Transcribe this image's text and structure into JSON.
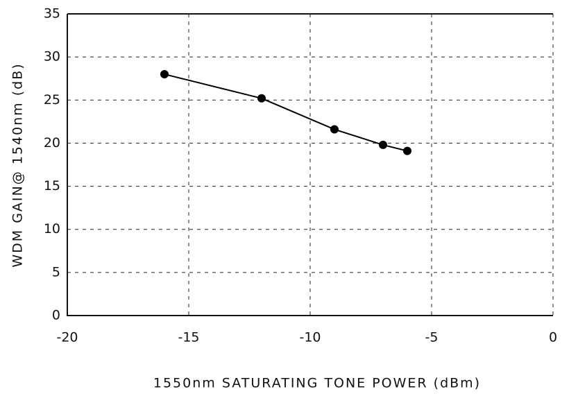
{
  "chart_data": {
    "type": "line",
    "x_label": "1550nm SATURATING TONE POWER (dBm)",
    "y_label": "WDM GAIN@ 1540nm (dB)",
    "x": [
      -16,
      -12,
      -9,
      -7,
      -6
    ],
    "values": [
      28,
      25.2,
      21.6,
      19.8,
      19.1
    ],
    "color": "#000000",
    "xlim": [
      -20,
      0
    ],
    "xticks": [
      -20,
      -15,
      -10,
      -5,
      0
    ],
    "ylim": [
      0,
      35
    ],
    "yticks": [
      0,
      5,
      10,
      15,
      20,
      25,
      30,
      35
    ],
    "grid": true
  }
}
